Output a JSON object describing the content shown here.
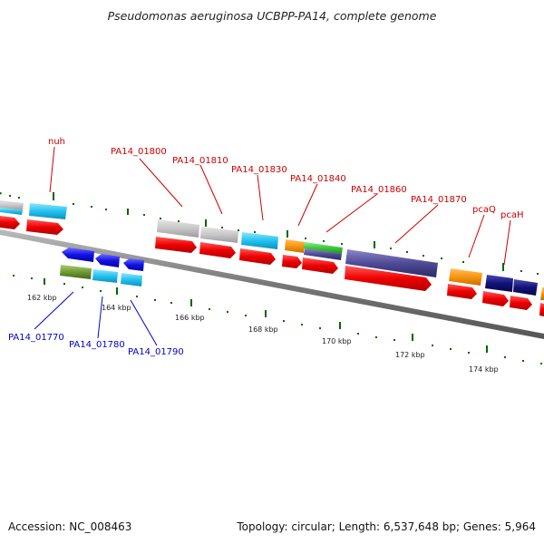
{
  "title": "Pseudomonas aeruginosa UCBPP-PA14, complete genome",
  "footer": {
    "accession": "Accession: NC_008463",
    "summary": "Topology: circular; Length: 6,537,648 bp; Genes: 5,964"
  },
  "colors": {
    "forward_label": "#cc0000",
    "reverse_label": "#0000cc",
    "backbone": "#888888",
    "tick": "#006600"
  },
  "ticks": [
    "162 kbp",
    "164 kbp",
    "166 kbp",
    "168 kbp",
    "170 kbp",
    "172 kbp",
    "174 kbp"
  ],
  "forward_labels": [
    "nuh",
    "PA14_01800",
    "PA14_01810",
    "PA14_01830",
    "PA14_01840",
    "PA14_01860",
    "PA14_01870",
    "pcaQ",
    "pcaH"
  ],
  "reverse_labels": [
    "PA14_01770",
    "PA14_01780",
    "PA14_01790"
  ]
}
